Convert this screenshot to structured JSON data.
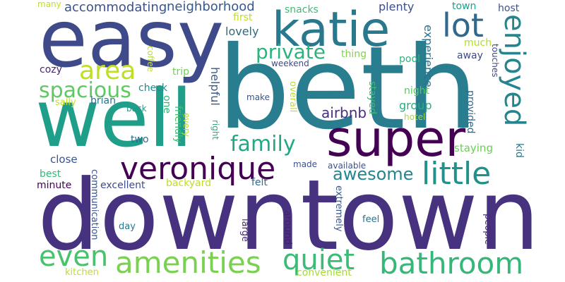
{
  "words": [
    {
      "text": "downtown",
      "color": "#46327e"
    },
    {
      "text": "beth",
      "color": "#287d8e"
    },
    {
      "text": "easy",
      "color": "#3e4a89"
    },
    {
      "text": "well",
      "color": "#1f9e89"
    },
    {
      "text": "super",
      "color": "#440154"
    },
    {
      "text": "katie",
      "color": "#2a788e"
    },
    {
      "text": "veronique",
      "color": "#440154"
    },
    {
      "text": "amenities",
      "color": "#7ad151"
    },
    {
      "text": "bathroom",
      "color": "#35b779"
    },
    {
      "text": "quiet",
      "color": "#3bbb75"
    },
    {
      "text": "little",
      "color": "#21918c"
    },
    {
      "text": "area",
      "color": "#bddf26"
    },
    {
      "text": "lot",
      "color": "#31688e"
    },
    {
      "text": "even",
      "color": "#4ac16d"
    },
    {
      "text": "enjoyed",
      "color": "#25848e"
    },
    {
      "text": "spacious",
      "color": "#5ec962"
    },
    {
      "text": "family",
      "color": "#22a884"
    },
    {
      "text": "private",
      "color": "#2db27d"
    },
    {
      "text": "awesome",
      "color": "#25858e"
    },
    {
      "text": "accommodating",
      "color": "#3b528b"
    },
    {
      "text": "neighborhood",
      "color": "#38588c"
    },
    {
      "text": "airbnb",
      "color": "#46307e"
    },
    {
      "text": "lovely",
      "color": "#30697e"
    },
    {
      "text": "snacks",
      "color": "#3fbc73"
    },
    {
      "text": "plenty",
      "color": "#3d4d8a"
    },
    {
      "text": "host",
      "color": "#3b528b"
    },
    {
      "text": "town",
      "color": "#1fa088"
    },
    {
      "text": "experience",
      "color": "#2c718e"
    },
    {
      "text": "thing",
      "color": "#84d44b"
    },
    {
      "text": "away",
      "color": "#3e4989"
    },
    {
      "text": "much",
      "color": "#b2dd2d"
    },
    {
      "text": "touches",
      "color": "#3f4788"
    },
    {
      "text": "pool",
      "color": "#2fb47c"
    },
    {
      "text": "weekend",
      "color": "#3e4a89"
    },
    {
      "text": "cozy",
      "color": "#482576"
    },
    {
      "text": "trip",
      "color": "#6ece58"
    },
    {
      "text": "check",
      "color": "#23898e"
    },
    {
      "text": "brian",
      "color": "#2c728e"
    },
    {
      "text": "helpful",
      "color": "#375b8d"
    },
    {
      "text": "make",
      "color": "#3a538b"
    },
    {
      "text": "overall",
      "color": "#bddf26"
    },
    {
      "text": "stayed",
      "color": "#3dbc74"
    },
    {
      "text": "group",
      "color": "#28ae80"
    },
    {
      "text": "night",
      "color": "#5cc863"
    },
    {
      "text": "hotel",
      "color": "#a2da37"
    },
    {
      "text": "provided",
      "color": "#31688e"
    },
    {
      "text": "kid",
      "color": "#2a788e"
    },
    {
      "text": "one",
      "color": "#34b679"
    },
    {
      "text": "friendly",
      "color": "#44bf70"
    },
    {
      "text": "every",
      "color": "#b8de29"
    },
    {
      "text": "right",
      "color": "#29af7f"
    },
    {
      "text": "sally",
      "color": "#c2df23"
    },
    {
      "text": "back",
      "color": "#1f9a8a"
    },
    {
      "text": "two",
      "color": "#2f6c8e"
    },
    {
      "text": "staying",
      "color": "#6ccd5a"
    },
    {
      "text": "close",
      "color": "#39568c"
    },
    {
      "text": "made",
      "color": "#3b528b"
    },
    {
      "text": "available",
      "color": "#3b528b"
    },
    {
      "text": "best",
      "color": "#35b779"
    },
    {
      "text": "minute",
      "color": "#440154"
    },
    {
      "text": "excellent",
      "color": "#3e4a89"
    },
    {
      "text": "backyard",
      "color": "#bddf26"
    },
    {
      "text": "felt",
      "color": "#31688e"
    },
    {
      "text": "communication",
      "color": "#3a548c"
    },
    {
      "text": "day",
      "color": "#2a788e"
    },
    {
      "text": "large",
      "color": "#482878"
    },
    {
      "text": "around",
      "color": "#481f70"
    },
    {
      "text": "extremely",
      "color": "#38588c"
    },
    {
      "text": "feel",
      "color": "#2c718e"
    },
    {
      "text": "people",
      "color": "#4c2a7b"
    },
    {
      "text": "kitchen",
      "color": "#bddf26"
    },
    {
      "text": "convenient",
      "color": "#a5db36"
    },
    {
      "text": "first",
      "color": "#bddf26"
    },
    {
      "text": "coffee",
      "color": "#bddf26"
    },
    {
      "text": "many",
      "color": "#bddf26"
    }
  ]
}
